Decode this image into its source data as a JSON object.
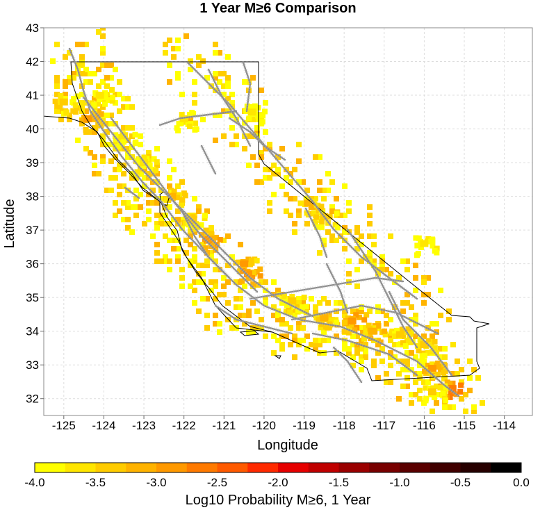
{
  "chart_data": {
    "type": "heatmap",
    "title": "1 Year M≥6 Comparison",
    "xlabel": "Longitude",
    "ylabel": "Latitude",
    "xlim": [
      -125.5,
      -113.3
    ],
    "ylim": [
      31.5,
      43
    ],
    "x_ticks": [
      -125,
      -124,
      -123,
      -122,
      -121,
      -120,
      -119,
      -118,
      -117,
      -116,
      -115,
      -114
    ],
    "x_tick_labels": [
      "-125",
      "-124",
      "-123",
      "-122",
      "-121",
      "-120",
      "-119",
      "-118",
      "-117",
      "-116",
      "-115",
      "-114"
    ],
    "y_ticks": [
      32,
      33,
      34,
      35,
      36,
      37,
      38,
      39,
      40,
      41,
      42,
      43
    ],
    "y_tick_labels": [
      "32",
      "33",
      "34",
      "35",
      "36",
      "37",
      "38",
      "39",
      "40",
      "41",
      "42",
      "43"
    ],
    "grid": true,
    "colorbar": {
      "label": "Log10 Probability M≥6, 1 Year",
      "range": [
        -4.0,
        0.0
      ],
      "tick_labels": [
        "-4.0",
        "-3.5",
        "-3.0",
        "-2.5",
        "-2.0",
        "-1.5",
        "-1.0",
        "-0.5",
        "0.0"
      ],
      "colors": [
        "#ffff00",
        "#ffe600",
        "#ffcc00",
        "#ffb300",
        "#ff9900",
        "#ff7a00",
        "#ff5a00",
        "#ff2a00",
        "#e60000",
        "#c00000",
        "#9a0000",
        "#780000",
        "#5a0000",
        "#400000",
        "#260000",
        "#000000"
      ]
    },
    "hotspots": [
      {
        "lon": -125.0,
        "lat": 40.8,
        "value": -3.3
      },
      {
        "lon": -124.4,
        "lat": 40.3,
        "value": -3.0
      },
      {
        "lon": -124.1,
        "lat": 41.0,
        "value": -3.6
      },
      {
        "lon": -123.5,
        "lat": 39.8,
        "value": -3.6
      },
      {
        "lon": -123.0,
        "lat": 39.0,
        "value": -3.6
      },
      {
        "lon": -122.3,
        "lat": 38.0,
        "value": -3.2
      },
      {
        "lon": -121.8,
        "lat": 37.3,
        "value": -3.3
      },
      {
        "lon": -121.4,
        "lat": 36.7,
        "value": -2.8
      },
      {
        "lon": -120.5,
        "lat": 36.0,
        "value": -3.0
      },
      {
        "lon": -120.4,
        "lat": 35.7,
        "value": -2.9
      },
      {
        "lon": -119.3,
        "lat": 34.9,
        "value": -3.4
      },
      {
        "lon": -118.5,
        "lat": 34.4,
        "value": -3.2
      },
      {
        "lon": -117.8,
        "lat": 34.3,
        "value": -2.8
      },
      {
        "lon": -117.3,
        "lat": 34.0,
        "value": -3.1
      },
      {
        "lon": -116.6,
        "lat": 33.9,
        "value": -3.3
      },
      {
        "lon": -116.0,
        "lat": 33.6,
        "value": -3.3
      },
      {
        "lon": -115.8,
        "lat": 32.9,
        "value": -3.0
      },
      {
        "lon": -115.3,
        "lat": 32.3,
        "value": -2.6
      },
      {
        "lon": -115.8,
        "lat": 32.2,
        "value": -3.5
      },
      {
        "lon": -118.9,
        "lat": 37.8,
        "value": -3.2
      },
      {
        "lon": -118.5,
        "lat": 37.4,
        "value": -3.4
      },
      {
        "lon": -116.0,
        "lat": 36.6,
        "value": -3.6
      },
      {
        "lon": -122.0,
        "lat": 40.3,
        "value": -3.6
      },
      {
        "lon": -120.3,
        "lat": 40.5,
        "value": -3.7
      }
    ]
  }
}
